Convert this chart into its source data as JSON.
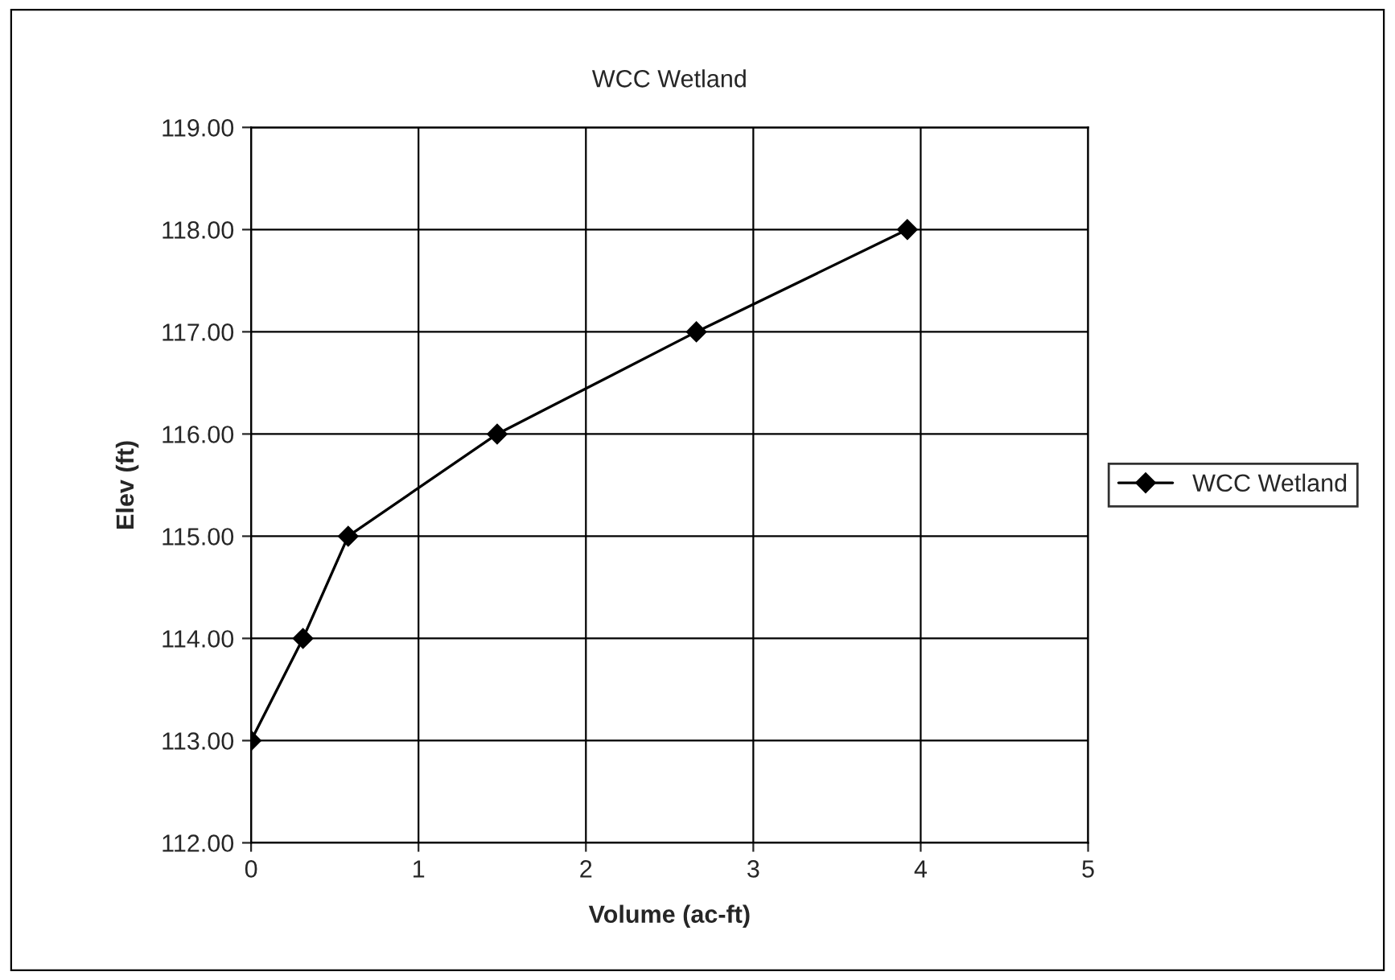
{
  "chart_data": {
    "type": "line",
    "title": "WCC Wetland",
    "xlabel": "Volume (ac-ft)",
    "ylabel": "Elev (ft)",
    "x": [
      0,
      0.31,
      0.58,
      1.47,
      2.66,
      3.92
    ],
    "series": [
      {
        "name": "WCC Wetland",
        "color": "#000000",
        "values": [
          113,
          114,
          115,
          116,
          117,
          118
        ]
      }
    ],
    "xlim": [
      0,
      5
    ],
    "xticks": [
      0,
      1,
      2,
      3,
      4,
      5
    ],
    "ylim": [
      112,
      119
    ],
    "yticks": [
      {
        "value": 112,
        "label": "112.00"
      },
      {
        "value": 113,
        "label": "113.00"
      },
      {
        "value": 114,
        "label": "114.00"
      },
      {
        "value": 115,
        "label": "115.00"
      },
      {
        "value": 116,
        "label": "116.00"
      },
      {
        "value": 117,
        "label": "117.00"
      },
      {
        "value": 118,
        "label": "118.00"
      },
      {
        "value": 119,
        "label": "119.00"
      }
    ],
    "grid": true,
    "legend": "right",
    "marker": "diamond",
    "line_style": "solid"
  }
}
